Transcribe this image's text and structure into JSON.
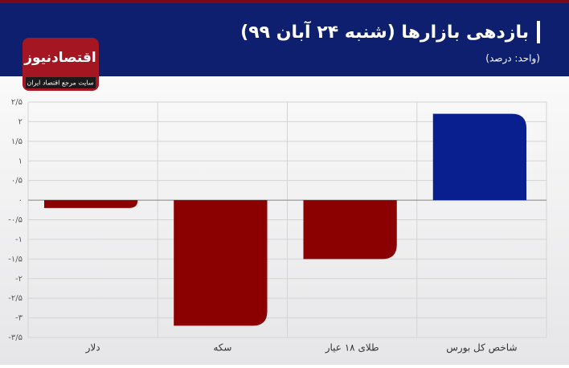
{
  "chart_data": {
    "type": "bar",
    "title": "بازدهی بازارها (شنبه ۲۴ آبان ۹۹)",
    "subtitle": "(واحد: درصد)",
    "categories": [
      "دلار",
      "سکه",
      "طلای ۱۸ عیار",
      "شاخص کل بورس"
    ],
    "values": [
      -0.2,
      -3.2,
      -1.5,
      2.2
    ],
    "colors": [
      "#8b0000",
      "#8b0000",
      "#8b0000",
      "#0a1f8f"
    ],
    "ylim": [
      -3.5,
      2.5
    ],
    "yticks": [
      {
        "value": 2.5,
        "label": "۲/۵"
      },
      {
        "value": 2,
        "label": "۲"
      },
      {
        "value": 1.5,
        "label": "۱/۵"
      },
      {
        "value": 1,
        "label": "۱"
      },
      {
        "value": 0.5,
        "label": "۰/۵"
      },
      {
        "value": 0,
        "label": "۰"
      },
      {
        "value": -0.5,
        "label": "-۰/۵"
      },
      {
        "value": -1,
        "label": "-۱"
      },
      {
        "value": -1.5,
        "label": "-۱/۵"
      },
      {
        "value": -2,
        "label": "-۲"
      },
      {
        "value": -2.5,
        "label": "-۲/۵"
      },
      {
        "value": -3,
        "label": "-۳"
      },
      {
        "value": -3.5,
        "label": "-۳/۵"
      }
    ],
    "grid": true
  },
  "logo": {
    "name": "اقتصادنیوز",
    "tagline": "سایت مرجع اقتصاد ایران"
  }
}
